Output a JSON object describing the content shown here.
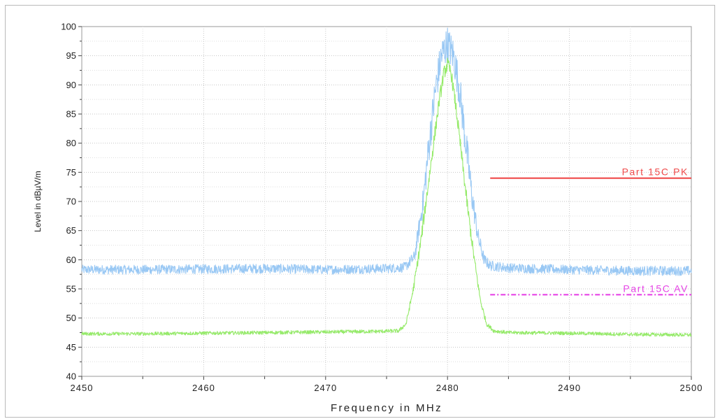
{
  "chart_data": {
    "type": "line",
    "xlabel": "Frequency in MHz",
    "ylabel": "Level in dBµV/m",
    "xlim": [
      2450,
      2500
    ],
    "ylim": [
      40,
      100
    ],
    "x_ticks": [
      "2450",
      "2460",
      "2470",
      "2480",
      "2490",
      "2500"
    ],
    "y_ticks": [
      "40",
      "45",
      "50",
      "55",
      "60",
      "65",
      "70",
      "75",
      "80",
      "85",
      "90",
      "95",
      "100"
    ],
    "grid": true,
    "series": [
      {
        "color": "#99c8f4",
        "noise": 0.8,
        "x": [
          2450,
          2455,
          2460,
          2465,
          2470,
          2475,
          2476.5,
          2477.3,
          2478.0,
          2478.5,
          2479.0,
          2479.5,
          2480.0,
          2480.5,
          2481.0,
          2481.5,
          2482.0,
          2482.5,
          2483.0,
          2483.5,
          2485,
          2490,
          2495,
          2500
        ],
        "y": [
          58.3,
          58.3,
          58.4,
          58.5,
          58.3,
          58.5,
          58.7,
          60.5,
          70.0,
          80.0,
          89.0,
          95.0,
          97.0,
          95.0,
          89.0,
          80.0,
          71.0,
          64.0,
          60.0,
          59.0,
          58.6,
          58.3,
          58.1,
          58.1
        ]
      },
      {
        "color": "#95ea69",
        "noise": 0.3,
        "x": [
          2450,
          2455,
          2460,
          2465,
          2470,
          2474,
          2476,
          2476.6,
          2477.2,
          2477.8,
          2478.3,
          2478.8,
          2479.3,
          2479.7,
          2480.0,
          2480.3,
          2480.7,
          2481.2,
          2481.7,
          2482.2,
          2482.7,
          2483.2,
          2483.8,
          2485,
          2490,
          2495,
          2500
        ],
        "y": [
          47.3,
          47.3,
          47.4,
          47.5,
          47.6,
          47.7,
          47.8,
          49.0,
          55.0,
          63.0,
          71.0,
          79.0,
          87.0,
          92.0,
          93.5,
          92.0,
          86.0,
          77.0,
          68.0,
          60.0,
          53.0,
          49.0,
          47.8,
          47.5,
          47.4,
          47.2,
          47.1
        ]
      },
      {
        "name": "Part 15C PK",
        "color": "#ef4a4a",
        "style": "solid",
        "x": [
          2483.5,
          2500
        ],
        "y": [
          74,
          74
        ]
      },
      {
        "name": "Part 15C AV",
        "color": "#e645e6",
        "style": "dashdot",
        "x": [
          2483.5,
          2500
        ],
        "y": [
          54,
          54
        ]
      }
    ]
  }
}
